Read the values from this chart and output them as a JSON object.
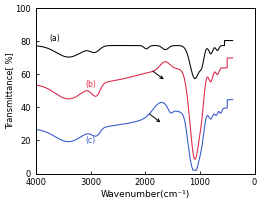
{
  "title": "",
  "xlabel": "Wavenumber(cm⁻¹)",
  "ylabel": "Transmittance[ %]",
  "xlim": [
    4000,
    0
  ],
  "ylim": [
    0,
    100
  ],
  "yticks": [
    0,
    20,
    40,
    60,
    80,
    100
  ],
  "xticks": [
    4000,
    3000,
    2000,
    1000,
    0
  ],
  "colors": {
    "a": "#000000",
    "b": "#dd2244",
    "c": "#3355cc"
  },
  "labels": {
    "a": "(a)",
    "b": "(b)",
    "c": "(c)"
  },
  "background": "#ffffff"
}
